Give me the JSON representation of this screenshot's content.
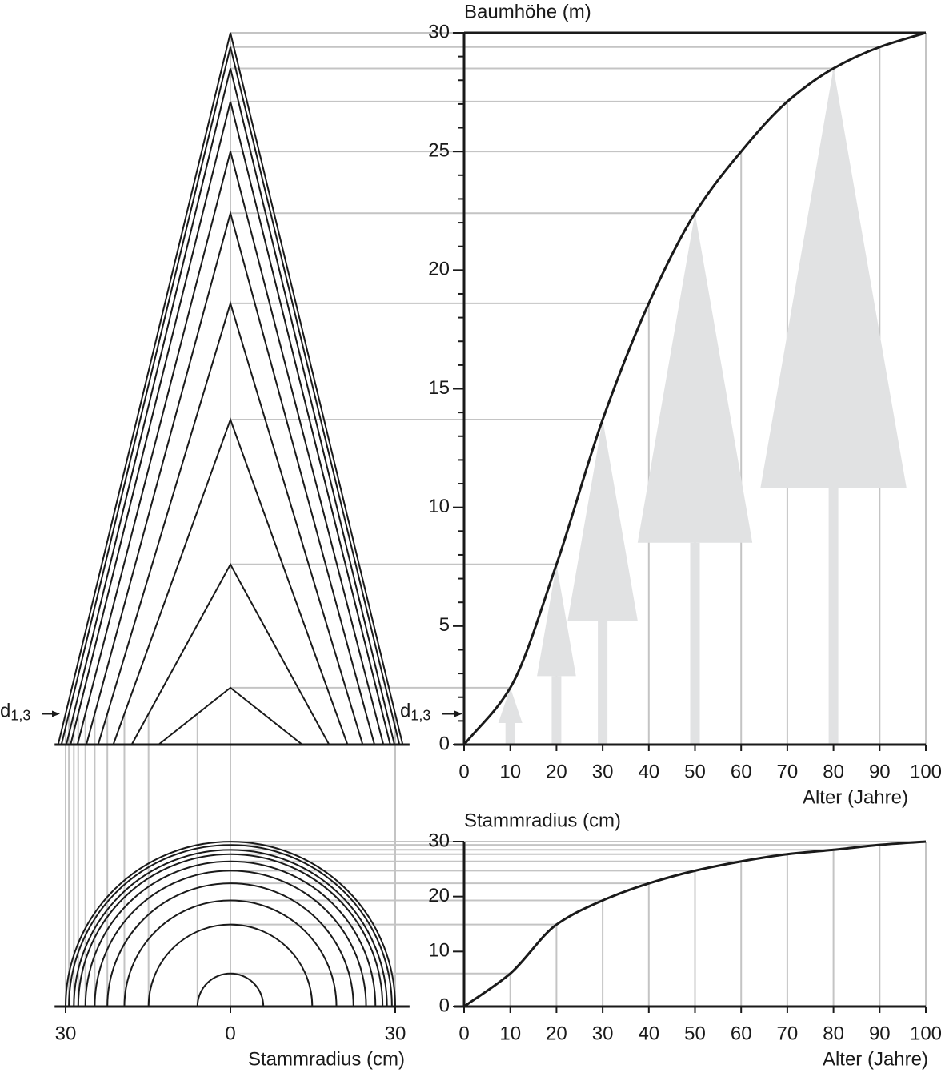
{
  "chart_data": [
    {
      "type": "line",
      "y_label": "Baumhöhe (m)",
      "x_label": "Alter (Jahre)",
      "x": [
        0,
        10,
        20,
        30,
        40,
        50,
        60,
        70,
        80,
        90,
        100
      ],
      "values": [
        0,
        2.4,
        7.6,
        13.7,
        18.6,
        22.4,
        25.0,
        27.1,
        28.5,
        29.4,
        30
      ],
      "color": "#1a1a1a",
      "xlim": [
        0,
        100
      ],
      "ylim": [
        0,
        30
      ],
      "xticks": [
        0,
        10,
        20,
        30,
        40,
        50,
        60,
        70,
        80,
        90,
        100
      ],
      "yticks": [
        0,
        5,
        10,
        15,
        20,
        25,
        30
      ],
      "annotation": {
        "text": "d",
        "sub": "1,3"
      }
    },
    {
      "type": "line",
      "y_label": "Stammradius (cm)",
      "x_label": "Alter (Jahre)",
      "x": [
        0,
        10,
        20,
        30,
        40,
        50,
        60,
        70,
        80,
        90,
        100
      ],
      "values": [
        0,
        6.0,
        14.9,
        19.3,
        22.4,
        24.7,
        26.4,
        27.7,
        28.5,
        29.4,
        30
      ],
      "color": "#1a1a1a",
      "xlim": [
        0,
        100
      ],
      "ylim": [
        0,
        30
      ],
      "xticks": [
        0,
        10,
        20,
        30,
        40,
        50,
        60,
        70,
        80,
        90,
        100
      ],
      "yticks": [
        0,
        10,
        20,
        30
      ]
    },
    {
      "type": "stem",
      "x_label": "Stammradius (cm)",
      "xlim": [
        -32,
        32.6
      ],
      "xticks": [
        {
          "value": -30,
          "label": "30"
        },
        0,
        30
      ]
    }
  ]
}
